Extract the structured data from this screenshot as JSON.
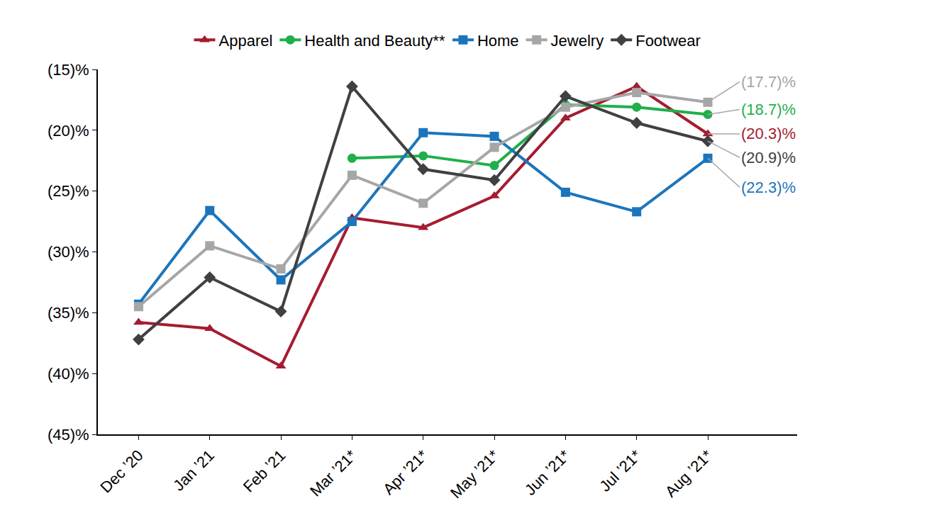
{
  "chart_data": {
    "type": "line",
    "categories": [
      "Dec ’20",
      "Jan ’21",
      "Feb ’21",
      "Mar ’21*",
      "Apr ’21*",
      "May ’21*",
      "Jun ’21*",
      "Jul ’21*",
      "Aug ’21*"
    ],
    "series": [
      {
        "name": "Apparel",
        "color": "#A51C30",
        "marker": "triangle-up",
        "line_style": "solid",
        "values": [
          -35.8,
          -36.3,
          -39.4,
          -27.2,
          -28.0,
          -25.4,
          -19.0,
          -16.4,
          -20.3
        ],
        "value_labels": [
          null,
          null,
          null,
          null,
          null,
          null,
          null,
          null,
          "(20.3)%"
        ]
      },
      {
        "name": "Health and Beauty**",
        "color": "#1FB04B",
        "marker": "circle",
        "line_style": "solid",
        "values": [
          null,
          null,
          null,
          -22.3,
          -22.1,
          -22.9,
          -17.9,
          -18.1,
          -18.7
        ],
        "value_labels": [
          null,
          null,
          null,
          null,
          null,
          null,
          null,
          null,
          "(18.7)%"
        ]
      },
      {
        "name": "Home",
        "color": "#1B75BC",
        "marker": "square",
        "line_style": "solid",
        "values": [
          -34.3,
          -26.6,
          -32.3,
          -27.5,
          -20.2,
          -20.5,
          -25.1,
          -26.7,
          -22.3
        ],
        "value_labels": [
          null,
          null,
          null,
          null,
          null,
          null,
          null,
          null,
          "(22.3)%"
        ]
      },
      {
        "name": "Jewelry",
        "color": "#A6A6A6",
        "marker": "square",
        "line_style": "solid",
        "values": [
          -34.5,
          -29.5,
          -31.4,
          -23.7,
          -26.0,
          -21.4,
          -18.1,
          -16.9,
          -17.7
        ],
        "value_labels": [
          null,
          null,
          null,
          null,
          null,
          null,
          null,
          null,
          "(17.7)%"
        ]
      },
      {
        "name": "Footwear",
        "color": "#404040",
        "marker": "diamond",
        "line_style": "solid",
        "values": [
          -37.2,
          -32.1,
          -34.9,
          -16.4,
          -23.2,
          -24.1,
          -17.2,
          -19.4,
          -20.9
        ],
        "value_labels": [
          null,
          null,
          null,
          null,
          null,
          null,
          null,
          null,
          "(20.9)%"
        ]
      }
    ],
    "ylim": [
      -45,
      -15
    ],
    "yticks": [
      {
        "value": -45,
        "label": "(45)%"
      },
      {
        "value": -40,
        "label": "(40)%"
      },
      {
        "value": -35,
        "label": "(35)%"
      },
      {
        "value": -30,
        "label": "(30)%"
      },
      {
        "value": -25,
        "label": "(25)%"
      },
      {
        "value": -20,
        "label": "(20)%"
      },
      {
        "value": -15,
        "label": "(15)%"
      }
    ],
    "grid": false,
    "legend": "top",
    "data_labels": true
  }
}
